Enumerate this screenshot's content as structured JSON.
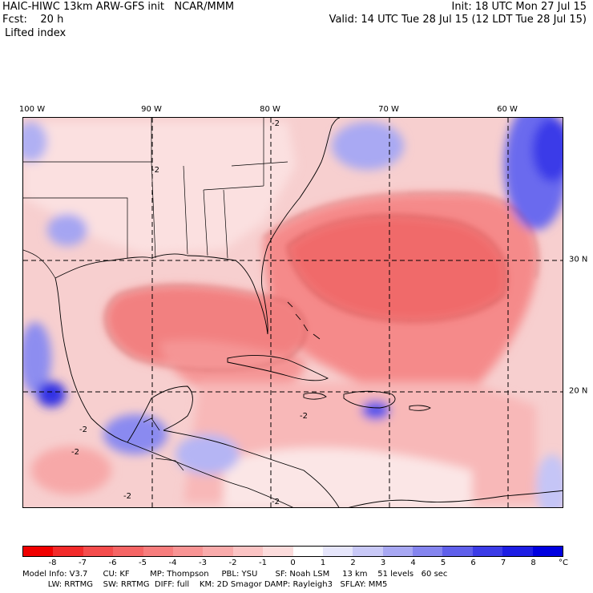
{
  "header": {
    "title_left": "HAIC-HIWC 13km ARW-GFS init   NCAR/MMM",
    "fcst_line": "Fcst:    20 h",
    "field_name": "Lifted index",
    "init_line": "Init: 18 UTC Mon 27 Jul 15",
    "valid_line": "Valid: 14 UTC Tue 28 Jul 15 (12 LDT Tue 28 Jul 15)"
  },
  "map": {
    "lon_labels": [
      "100 W",
      "90 W",
      "80 W",
      "70 W",
      "60 W"
    ],
    "lat_labels": [
      "30 N",
      "20 N"
    ],
    "contour_labels": [
      "-2",
      "-2",
      "-2",
      "-2",
      "-2",
      "-2",
      "-2"
    ],
    "colors": {
      "ocean_base": "#f7cfcf",
      "strong_neg": "#f06060",
      "mid_neg": "#f59a9a",
      "weak_pos": "#dcdcf7",
      "mid_pos": "#9c9cf0",
      "strong_pos": "#3c3cf0",
      "coast": "#000000"
    }
  },
  "colorbar": {
    "unit": "°C",
    "tick_labels": [
      "-8",
      "-7",
      "-6",
      "-5",
      "-4",
      "-3",
      "-2",
      "-1",
      "0",
      "1",
      "2",
      "3",
      "4",
      "5",
      "6",
      "7",
      "8"
    ],
    "colors": [
      "#f00000",
      "#f22a2a",
      "#f44c4c",
      "#f56565",
      "#f77d7d",
      "#f89494",
      "#f9abab",
      "#fbc4c4",
      "#fcdcdc",
      "#ffffff",
      "#e6e6fb",
      "#c9c9f7",
      "#a8a8f3",
      "#8585ef",
      "#6060eb",
      "#3c3ce7",
      "#1e1ee4",
      "#0000e0"
    ]
  },
  "model_info": {
    "line1": "Model Info: V3.7      CU: KF        MP: Thompson     PBL: YSU       SF: Noah LSM     13 km    51 levels   60 sec",
    "line2": "          LW: RRTMG    SW: RRTMG  DIFF: full    KM: 2D Smagor DAMP: Rayleigh3   SFLAY: MM5"
  }
}
